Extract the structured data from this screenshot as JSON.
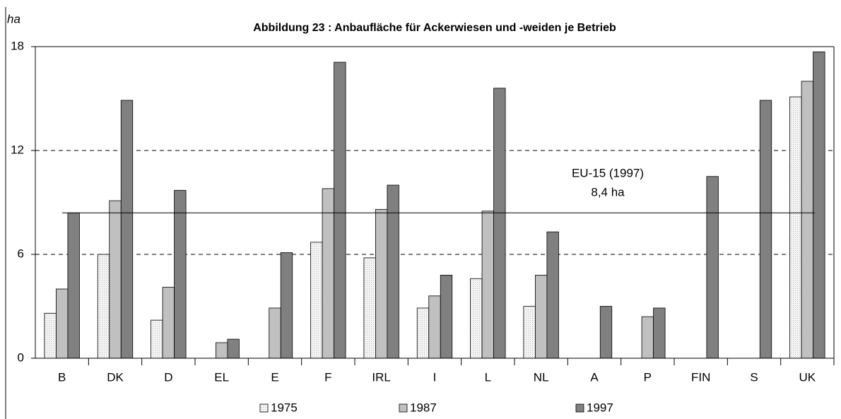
{
  "chart_data": {
    "type": "bar",
    "title": "Abbildung 23 : Anbaufläche für Ackerwiesen und -weiden je Betrieb",
    "y_label": "ha",
    "categories": [
      "B",
      "DK",
      "D",
      "EL",
      "E",
      "F",
      "IRL",
      "I",
      "L",
      "NL",
      "A",
      "P",
      "FIN",
      "S",
      "UK"
    ],
    "series": [
      {
        "name": "1975",
        "color": "#f2f2f2",
        "values": [
          2.6,
          6.0,
          2.2,
          null,
          null,
          6.7,
          5.8,
          2.9,
          4.6,
          3.0,
          null,
          null,
          null,
          null,
          15.1
        ]
      },
      {
        "name": "1987",
        "color": "#c0c0c0",
        "values": [
          4.0,
          9.1,
          4.1,
          0.9,
          2.9,
          9.8,
          8.6,
          3.6,
          8.5,
          4.8,
          null,
          2.4,
          null,
          null,
          16.0
        ]
      },
      {
        "name": "1997",
        "color": "#808080",
        "values": [
          8.4,
          14.9,
          9.7,
          1.1,
          6.1,
          17.1,
          10.0,
          4.8,
          15.6,
          7.3,
          3.0,
          2.9,
          10.5,
          14.9,
          17.7
        ]
      }
    ],
    "reference_line": {
      "value": 8.4,
      "label": "EU-15 (1997)",
      "value_label": "8,4 ha"
    },
    "ylim": [
      0,
      18
    ],
    "yticks": [
      0,
      6,
      12,
      18
    ],
    "grid": true,
    "legend": "bottom"
  }
}
